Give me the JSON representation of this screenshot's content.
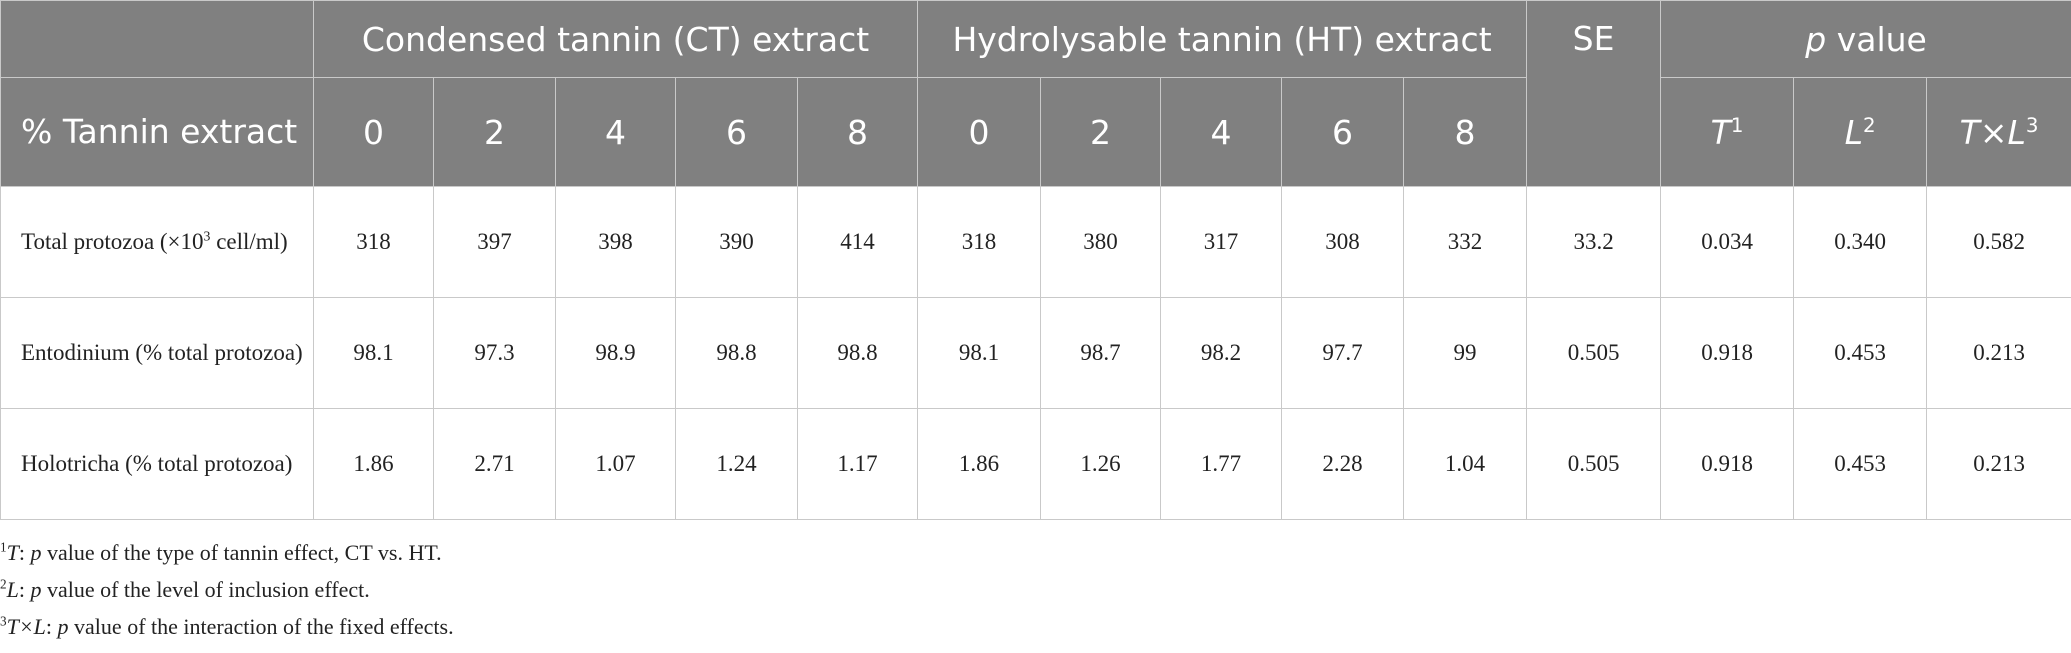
{
  "table": {
    "group_headers": [
      "Condensed tannin (CT) extract",
      "Hydrolysable tannin (HT) extract",
      "SE",
      [
        "p",
        " value"
      ]
    ],
    "row_header": "% Tannin extract",
    "levels": [
      [
        "0",
        "2",
        "4",
        "6",
        "8"
      ],
      [
        "0",
        "2",
        "4",
        "6",
        "8"
      ]
    ],
    "p_headers": [
      [
        "T",
        "1"
      ],
      [
        "L",
        "2"
      ],
      [
        "T×L",
        "3"
      ]
    ],
    "rows": [
      {
        "label": [
          "Total protozoa (×10",
          "3",
          " cell/ml)"
        ],
        "values": [
          "318",
          "397",
          "398",
          "390",
          "414",
          "318",
          "380",
          "317",
          "308",
          "332",
          "33.2",
          "0.034",
          "0.340",
          "0.582"
        ]
      },
      {
        "label": [
          "Entodinium (% total protozoa)"
        ],
        "values": [
          "98.1",
          "97.3",
          "98.9",
          "98.8",
          "98.8",
          "98.1",
          "98.7",
          "98.2",
          "97.7",
          "99",
          "0.505",
          "0.918",
          "0.453",
          "0.213"
        ]
      },
      {
        "label": [
          "Holotricha (% total protozoa)"
        ],
        "values": [
          "1.86",
          "2.71",
          "1.07",
          "1.24",
          "1.17",
          "1.86",
          "1.26",
          "1.77",
          "2.28",
          "1.04",
          "0.505",
          "0.918",
          "0.453",
          "0.213"
        ]
      }
    ]
  },
  "footnotes": [
    [
      "1",
      "T",
      ": ",
      "p",
      " value of the type of tannin effect, CT vs. HT."
    ],
    [
      "2",
      "L",
      ": ",
      "p",
      " value of the level of inclusion effect."
    ],
    [
      "3",
      "T×L",
      ": ",
      "p",
      " value of the interaction of the fixed effects."
    ]
  ]
}
